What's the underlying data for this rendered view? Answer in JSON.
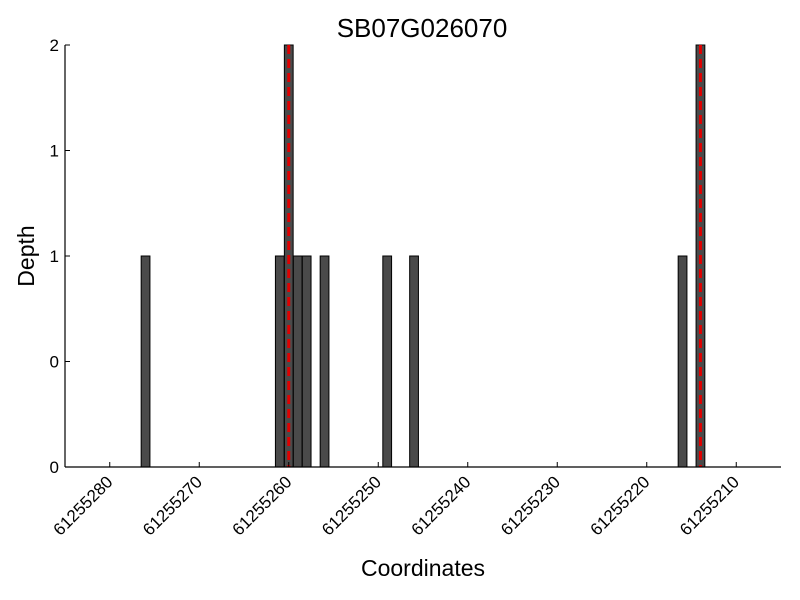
{
  "chart_data": {
    "type": "bar",
    "title": "SB07G026070",
    "xlabel": "Coordinates",
    "ylabel": "Depth",
    "x_reversed": true,
    "xlim": [
      61255285,
      61255205
    ],
    "ylim": [
      0,
      2
    ],
    "x_ticks": [
      61255280,
      61255270,
      61255260,
      61255250,
      61255240,
      61255230,
      61255220,
      61255210
    ],
    "y_tick_labels": [
      "0",
      "0",
      "1",
      "1",
      "2"
    ],
    "y_tick_values": [
      0,
      0.5,
      1,
      1.5,
      2
    ],
    "grid": false,
    "bar_color": "#4a4a4a",
    "marker_color": "#e00000",
    "bars": [
      {
        "x": 61255276,
        "depth": 1
      },
      {
        "x": 61255261,
        "depth": 1
      },
      {
        "x": 61255260,
        "depth": 2
      },
      {
        "x": 61255259,
        "depth": 1
      },
      {
        "x": 61255258,
        "depth": 1
      },
      {
        "x": 61255256,
        "depth": 1
      },
      {
        "x": 61255249,
        "depth": 1
      },
      {
        "x": 61255246,
        "depth": 1
      },
      {
        "x": 61255216,
        "depth": 1
      },
      {
        "x": 61255214,
        "depth": 2
      }
    ],
    "markers": [
      61255260,
      61255214
    ]
  }
}
